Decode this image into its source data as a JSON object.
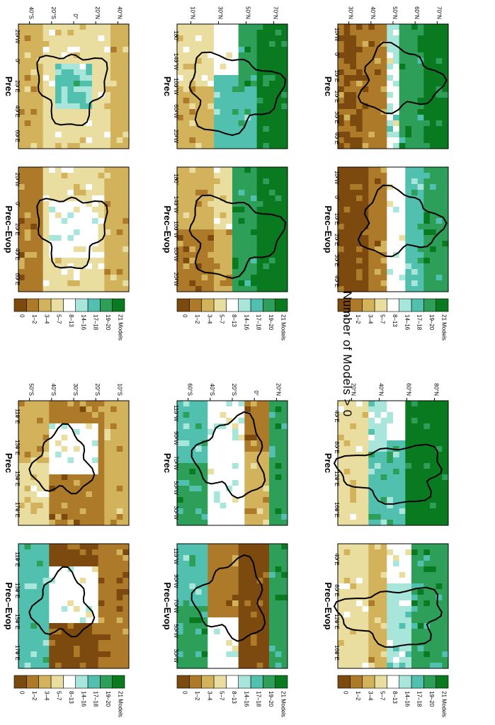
{
  "page_title": "Number of Models > 0",
  "legend": {
    "labels": [
      "21 Models",
      "19–20",
      "17–18",
      "14–16",
      "8–13",
      "5–7",
      "3–4",
      "1–2",
      "0"
    ],
    "colors": [
      "#0a7a20",
      "#2e9f58",
      "#52c0ae",
      "#a8e6dc",
      "#ffffff",
      "#e9dda0",
      "#d2b25a",
      "#ad7a2a",
      "#7c4a0e"
    ]
  },
  "panels": [
    {
      "id": "europe-prec",
      "title": "Prec",
      "lat_ticks": [
        "70°N",
        "60°N",
        "50°N",
        "40°N",
        "30°N"
      ],
      "lon_ticks": [
        "10°W",
        "0°",
        "10°E",
        "20°E",
        "30°E",
        "40°E"
      ]
    },
    {
      "id": "europe-prec-evop",
      "title": "Prec–Evop",
      "lat_ticks": [],
      "lon_ticks": [
        "10°W",
        "0°",
        "10°E",
        "20°E",
        "30°E",
        "40°E"
      ]
    },
    {
      "id": "namerica-prec",
      "title": "Prec",
      "lat_ticks": [
        "70°N",
        "50°N",
        "30°N",
        "10°N"
      ],
      "lon_ticks": [
        "180°",
        "140°W",
        "100°W",
        "60°W",
        "20°W"
      ]
    },
    {
      "id": "namerica-prec-evop",
      "title": "Prec–Evop",
      "lat_ticks": [],
      "lon_ticks": [
        "180°",
        "140°W",
        "100°W",
        "60°W",
        "20°W"
      ]
    },
    {
      "id": "africa-prec",
      "title": "Prec",
      "lat_ticks": [
        "40°N",
        "20°N",
        "0°",
        "20°S",
        "40°S"
      ],
      "lon_ticks": [
        "20°W",
        "0°",
        "20°E",
        "40°E",
        "60°E"
      ]
    },
    {
      "id": "africa-prec-evop",
      "title": "Prec–Evop",
      "lat_ticks": [],
      "lon_ticks": [
        "20°W",
        "0°",
        "20°E",
        "40°E",
        "60°E"
      ]
    },
    {
      "id": "asia-prec",
      "title": "Prec",
      "lat_ticks": [
        "80°N",
        "60°N",
        "40°N",
        "20°N"
      ],
      "lon_ticks": [
        "40°E",
        "80°E",
        "120°E",
        "160°E"
      ]
    },
    {
      "id": "asia-prec-evop",
      "title": "Prec–Evop",
      "lat_ticks": [],
      "lon_ticks": [
        "40°E",
        "80°E",
        "120°E",
        "160°E"
      ]
    },
    {
      "id": "samerica-prec",
      "title": "Prec",
      "lat_ticks": [
        "20°N",
        "0°",
        "20°S",
        "40°S",
        "60°S"
      ],
      "lon_ticks": [
        "110°W",
        "90°W",
        "70°W",
        "50°W",
        "30°W"
      ]
    },
    {
      "id": "samerica-prec-evop",
      "title": "Prec–Evop",
      "lat_ticks": [],
      "lon_ticks": [
        "110°W",
        "90°W",
        "70°W",
        "50°W",
        "30°W"
      ]
    },
    {
      "id": "australia-prec",
      "title": "Prec",
      "lat_ticks": [
        "10°S",
        "20°S",
        "30°S",
        "40°S",
        "50°S"
      ],
      "lon_ticks": [
        "110°E",
        "130°E",
        "150°E",
        "170°E"
      ]
    },
    {
      "id": "australia-prec-evop",
      "title": "Prec–Evop",
      "lat_ticks": [],
      "lon_ticks": [
        "110°E",
        "130°E",
        "150°E",
        "170°E"
      ]
    }
  ]
}
